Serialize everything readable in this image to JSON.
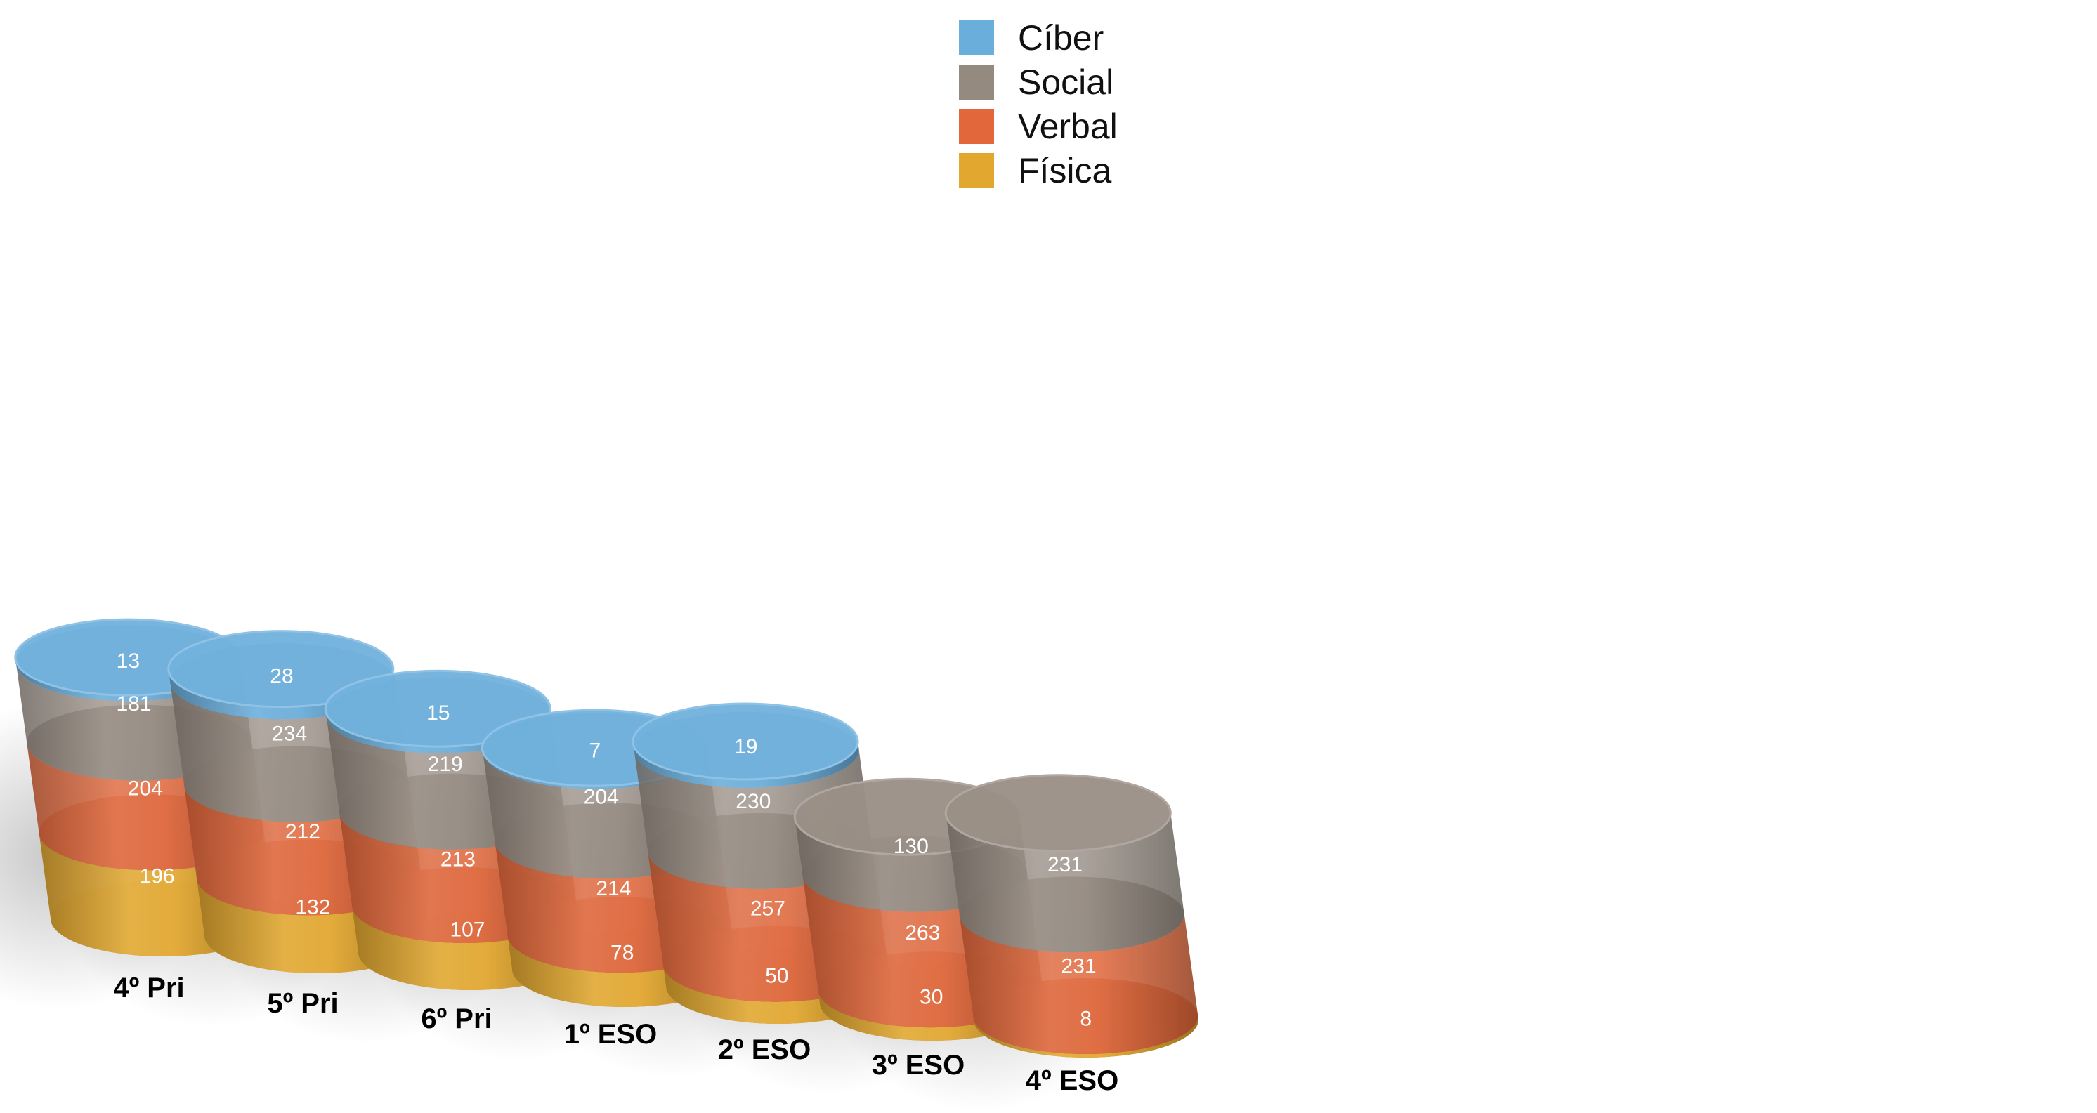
{
  "chart_data": {
    "type": "bar",
    "stacked": true,
    "style": "3d-cylinder",
    "title": "",
    "xlabel": "",
    "ylabel": "",
    "legend_position": "top-center",
    "grid": false,
    "categories": [
      "4º Pri",
      "5º Pri",
      "6º Pri",
      "1º ESO",
      "2º ESO",
      "3º ESO",
      "4º ESO"
    ],
    "series": [
      {
        "name": "Física",
        "color": "#E2A72E",
        "values": [
          196,
          132,
          107,
          78,
          50,
          30,
          8
        ]
      },
      {
        "name": "Verbal",
        "color": "#E2673A",
        "values": [
          204,
          212,
          213,
          214,
          257,
          263,
          231
        ]
      },
      {
        "name": "Social",
        "color": "#958A80",
        "values": [
          181,
          234,
          219,
          204,
          230,
          130,
          231
        ]
      },
      {
        "name": "Cíber",
        "color": "#6AAEDC",
        "values": [
          13,
          28,
          15,
          7,
          19,
          null,
          null
        ]
      }
    ],
    "legend_order": [
      "Cíber",
      "Social",
      "Verbal",
      "Física"
    ]
  }
}
